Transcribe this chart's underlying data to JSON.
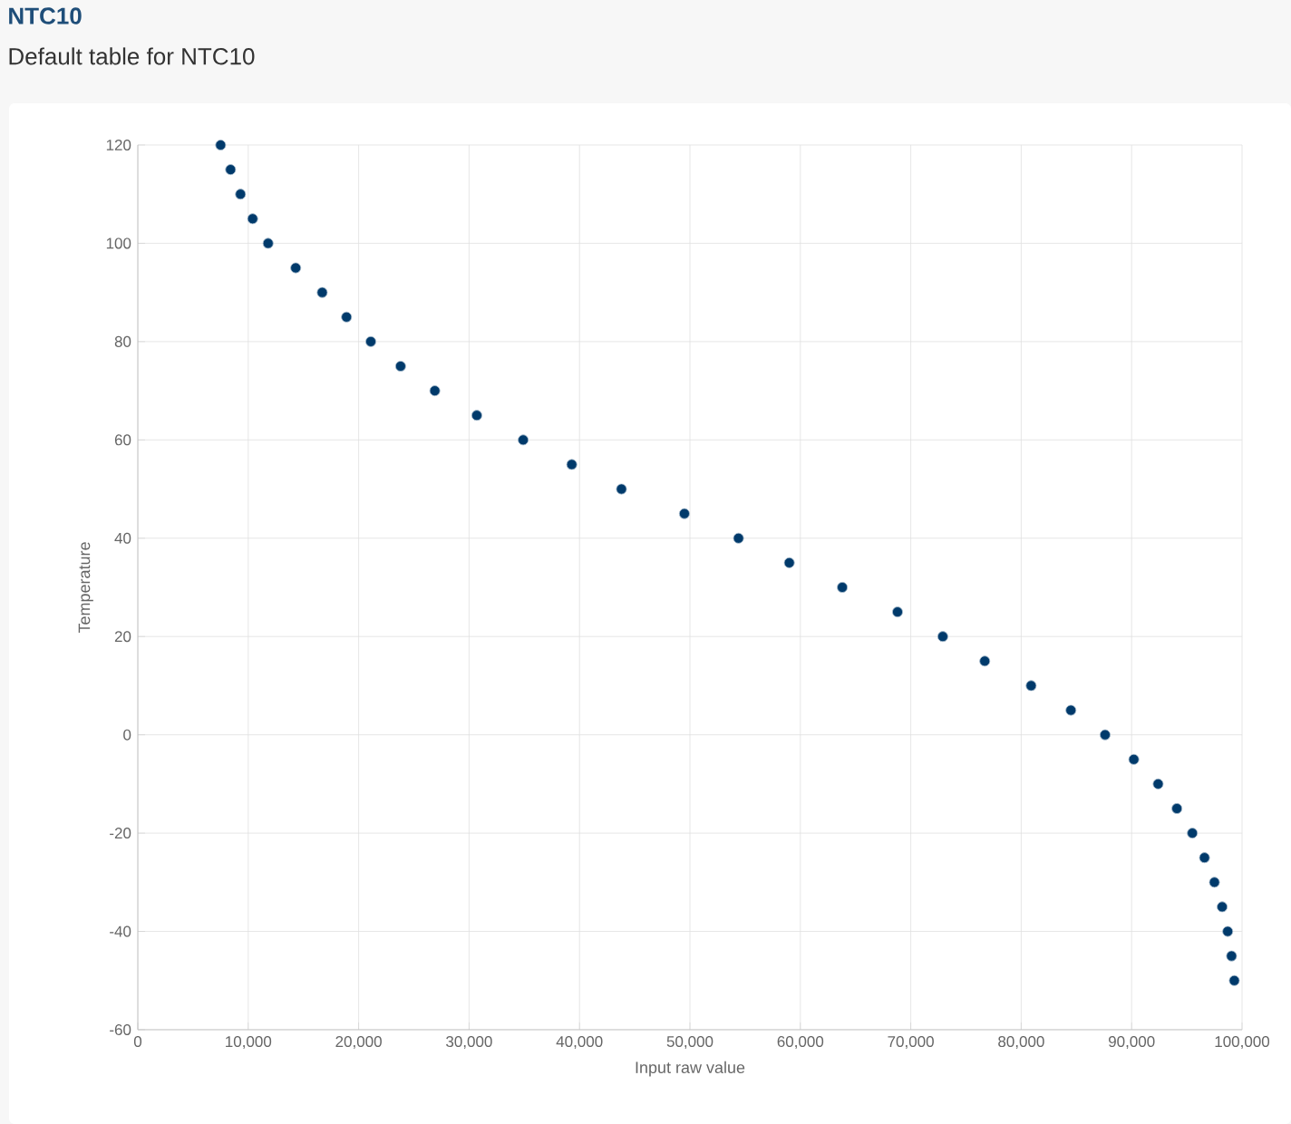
{
  "chart_data": {
    "type": "scatter",
    "title": "NTC10",
    "subtitle": "Default table for NTC10",
    "xlabel": "Input raw value",
    "ylabel": "Temperature",
    "x": [
      7500,
      8400,
      9300,
      10400,
      11800,
      14300,
      16700,
      18900,
      21100,
      23800,
      26900,
      30700,
      34900,
      39300,
      43800,
      49500,
      54400,
      59000,
      63800,
      68800,
      72900,
      76700,
      80900,
      84500,
      87600,
      90200,
      92400,
      94100,
      95500,
      96600,
      97500,
      98200,
      98700,
      99050,
      99300
    ],
    "values": [
      120,
      115,
      110,
      105,
      100,
      95,
      90,
      85,
      80,
      75,
      70,
      65,
      60,
      55,
      50,
      45,
      40,
      35,
      30,
      25,
      20,
      15,
      10,
      5,
      0,
      -5,
      -10,
      -15,
      -20,
      -25,
      -30,
      -35,
      -40,
      -45,
      -50
    ],
    "color": "#003a6b",
    "marker": "circle",
    "grid": true,
    "xlim": [
      0,
      100000
    ],
    "ylim": [
      -60,
      120
    ],
    "xticks": [
      0,
      {
        "value": 10000,
        "label": "10,000"
      },
      {
        "value": 20000,
        "label": "20,000"
      },
      {
        "value": 30000,
        "label": "30,000"
      },
      {
        "value": 40000,
        "label": "40,000"
      },
      {
        "value": 50000,
        "label": "50,000"
      },
      {
        "value": 60000,
        "label": "60,000"
      },
      {
        "value": 70000,
        "label": "70,000"
      },
      {
        "value": 80000,
        "label": "80,000"
      },
      {
        "value": 90000,
        "label": "90,000"
      },
      {
        "value": 100000,
        "label": "100,000"
      }
    ],
    "yticks": [
      -60,
      -40,
      -20,
      0,
      20,
      40,
      60,
      80,
      100,
      120
    ]
  }
}
